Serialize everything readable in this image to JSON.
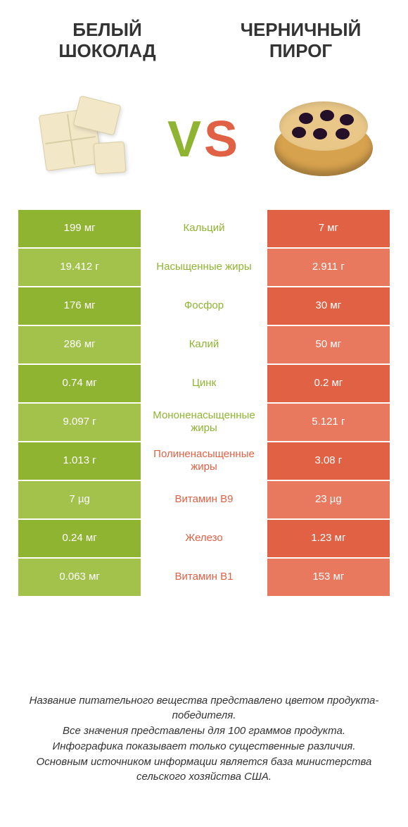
{
  "header": {
    "left_title": "БЕЛЫЙ ШОКОЛАД",
    "right_title": "ЧЕРНИЧНЫЙ ПИРОГ",
    "vs_letter_v": "V",
    "vs_letter_s": "S"
  },
  "palette": {
    "green_dark": "#8fb432",
    "green_light": "#a2c24c",
    "orange_dark": "#e16144",
    "orange_light": "#e8785e",
    "text": "#333333",
    "background": "#ffffff"
  },
  "table": {
    "type": "comparison-table",
    "left_label_color": "#8fb432",
    "right_label_color": "#e16144",
    "rows": [
      {
        "left": "199 мг",
        "label": "Кальций",
        "right": "7 мг",
        "winner": "left"
      },
      {
        "left": "19.412 г",
        "label": "Насыщенные жиры",
        "right": "2.911 г",
        "winner": "left"
      },
      {
        "left": "176 мг",
        "label": "Фосфор",
        "right": "30 мг",
        "winner": "left"
      },
      {
        "left": "286 мг",
        "label": "Калий",
        "right": "50 мг",
        "winner": "left"
      },
      {
        "left": "0.74 мг",
        "label": "Цинк",
        "right": "0.2 мг",
        "winner": "left"
      },
      {
        "left": "9.097 г",
        "label": "Мононенасыщенные жиры",
        "right": "5.121 г",
        "winner": "left"
      },
      {
        "left": "1.013 г",
        "label": "Полиненасыщенные жиры",
        "right": "3.08 г",
        "winner": "right"
      },
      {
        "left": "7 µg",
        "label": "Витамин B9",
        "right": "23 µg",
        "winner": "right"
      },
      {
        "left": "0.24 мг",
        "label": "Железо",
        "right": "1.23 мг",
        "winner": "right"
      },
      {
        "left": "0.063 мг",
        "label": "Витамин B1",
        "right": "153 мг",
        "winner": "right"
      }
    ]
  },
  "footer": {
    "line1": "Название питательного вещества представлено цветом продукта-победителя.",
    "line2": "Все значения представлены для 100 граммов продукта.",
    "line3": "Инфографика показывает только существенные различия.",
    "line4": "Основным источником информации является база министерства сельского хозяйства США."
  },
  "typography": {
    "title_fontsize": 26,
    "cell_fontsize": 15,
    "footer_fontsize": 15,
    "vs_fontsize": 72
  }
}
